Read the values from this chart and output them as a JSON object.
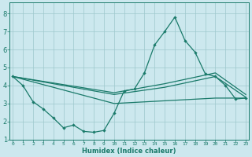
{
  "xlabel": "Humidex (Indice chaleur)",
  "background_color": "#cce8ee",
  "grid_color": "#9ec8cc",
  "line_color": "#1a7a6a",
  "xlim": [
    -0.3,
    23.3
  ],
  "ylim": [
    1,
    8.6
  ],
  "yticks": [
    1,
    2,
    3,
    4,
    5,
    6,
    7,
    8
  ],
  "xticks": [
    0,
    1,
    2,
    3,
    4,
    5,
    6,
    7,
    8,
    9,
    10,
    11,
    12,
    13,
    14,
    15,
    16,
    17,
    18,
    19,
    20,
    21,
    22,
    23
  ],
  "series1_x": [
    0,
    1,
    2,
    3,
    4,
    5,
    6,
    7,
    8,
    9,
    10,
    11,
    12,
    13,
    14,
    15,
    16,
    17,
    18,
    19,
    20,
    21,
    22,
    23
  ],
  "series1_y": [
    4.5,
    4.0,
    3.1,
    2.7,
    2.2,
    1.65,
    1.8,
    1.45,
    1.4,
    1.5,
    2.45,
    3.7,
    3.8,
    4.7,
    6.25,
    7.0,
    7.8,
    6.5,
    5.85,
    4.65,
    4.5,
    4.0,
    3.25,
    3.3
  ],
  "series2_x": [
    0,
    10,
    15,
    20,
    23
  ],
  "series2_y": [
    4.5,
    3.5,
    3.9,
    4.5,
    3.35
  ],
  "series3_x": [
    0,
    10,
    15,
    20,
    23
  ],
  "series3_y": [
    4.5,
    3.6,
    4.1,
    4.7,
    3.5
  ],
  "series4_x": [
    0,
    10,
    15,
    20,
    23
  ],
  "series4_y": [
    4.5,
    3.0,
    3.15,
    3.3,
    3.3
  ],
  "ytick_fontsize": 6,
  "xtick_fontsize": 4.5,
  "xlabel_fontsize": 6
}
